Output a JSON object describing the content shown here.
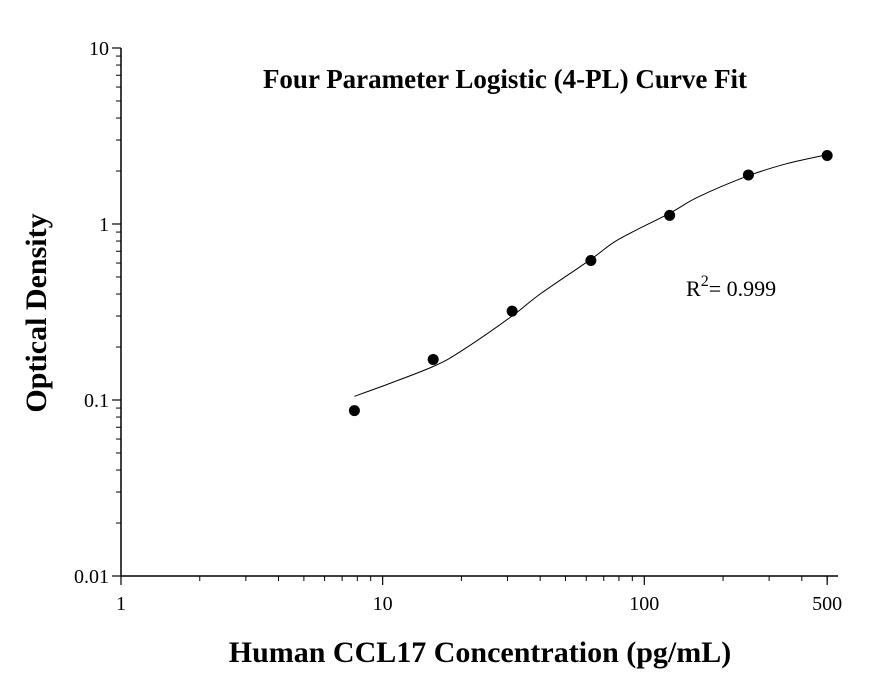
{
  "chart_data": {
    "type": "scatter",
    "title": "Four Parameter Logistic (4-PL) Curve Fit",
    "xlabel": "Human CCL17 Concentration (pg/mL)",
    "ylabel": "Optical Density",
    "x_scale": "log",
    "y_scale": "log",
    "xlim": [
      1,
      550
    ],
    "ylim": [
      0.01,
      10
    ],
    "x_ticks": [
      {
        "value": 1,
        "label": "1"
      },
      {
        "value": 10,
        "label": "10"
      },
      {
        "value": 100,
        "label": "100"
      },
      {
        "value": 500,
        "label": "500"
      }
    ],
    "y_ticks": [
      {
        "value": 0.01,
        "label": "0.01"
      },
      {
        "value": 0.1,
        "label": "0.1"
      },
      {
        "value": 1,
        "label": "1"
      },
      {
        "value": 10,
        "label": "10"
      }
    ],
    "points": [
      {
        "x": 7.8,
        "y": 0.087
      },
      {
        "x": 15.6,
        "y": 0.17
      },
      {
        "x": 31.25,
        "y": 0.32
      },
      {
        "x": 62.5,
        "y": 0.62
      },
      {
        "x": 125,
        "y": 1.12
      },
      {
        "x": 250,
        "y": 1.9
      },
      {
        "x": 500,
        "y": 2.45
      }
    ],
    "fit_curve": {
      "model": "4-PL",
      "x": [
        7.8,
        10,
        15.6,
        20,
        31.25,
        40,
        62.5,
        80,
        125,
        160,
        250,
        350,
        500
      ],
      "y": [
        0.105,
        0.12,
        0.155,
        0.19,
        0.3,
        0.4,
        0.63,
        0.82,
        1.15,
        1.42,
        1.88,
        2.2,
        2.48
      ]
    },
    "annotation": {
      "prefix": "R",
      "superscript": "2",
      "suffix": "= 0.999"
    },
    "grid": false,
    "legend": "none"
  }
}
